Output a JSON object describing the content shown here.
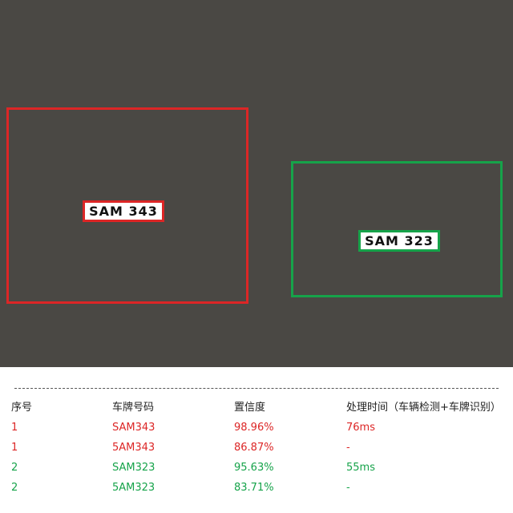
{
  "colors": {
    "car1": "#dc2626",
    "car2": "#16a34a"
  },
  "photo": {
    "description_icon": "photo-placeholder",
    "detections": [
      {
        "id": 1,
        "color_key": "car1",
        "plate_text": "SAM 343"
      },
      {
        "id": 2,
        "color_key": "car2",
        "plate_text": "SAM 323"
      }
    ]
  },
  "table": {
    "headers": [
      "序号",
      "车牌号码",
      "置信度",
      "处理时间（车辆检测+车牌识别）"
    ],
    "rows": [
      {
        "index": "1",
        "plate": "SAM343",
        "confidence": "98.96%",
        "time": "76ms",
        "color_key": "car1"
      },
      {
        "index": "1",
        "plate": "5AM343",
        "confidence": "86.87%",
        "time": "-",
        "color_key": "car1"
      },
      {
        "index": "2",
        "plate": "SAM323",
        "confidence": "95.63%",
        "time": "55ms",
        "color_key": "car2"
      },
      {
        "index": "2",
        "plate": "5AM323",
        "confidence": "83.71%",
        "time": "-",
        "color_key": "car2"
      }
    ]
  }
}
